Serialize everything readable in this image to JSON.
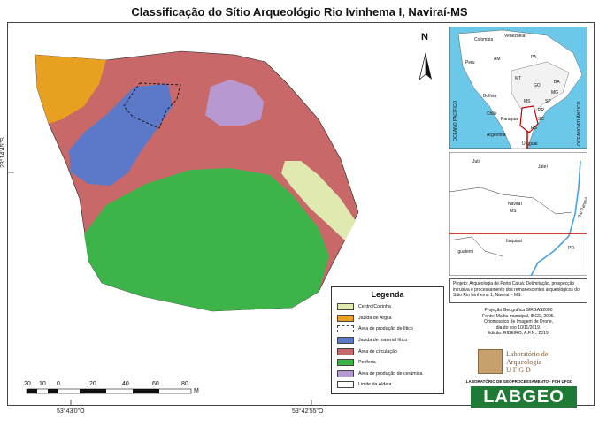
{
  "title": "Classificação do Sítio Arqueológio Rio Ivinhema I, Naviraí-MS",
  "coordinates": {
    "lat_label": "23°14'45\"S",
    "lon_label_1": "53°43'0\"O",
    "lon_label_2": "53°42'55\"O"
  },
  "north_arrow": {
    "label": "N"
  },
  "scale_bar": {
    "ticks": [
      "20",
      "10",
      "0",
      "20",
      "40",
      "60",
      "80"
    ],
    "unit": "M"
  },
  "legend": {
    "title": "Legenda",
    "items": [
      {
        "label": "Centro/Cozinha",
        "color": "#e0eab0",
        "style": "fill"
      },
      {
        "label": "Jazida de Argila",
        "color": "#e8a020",
        "style": "fill"
      },
      {
        "label": "Área de produção de lítico",
        "color": "#ffffff",
        "style": "dashed"
      },
      {
        "label": "Jazida de material lítico",
        "color": "#5c78c8",
        "style": "fill"
      },
      {
        "label": "Área de circulação",
        "color": "#c86868",
        "style": "fill"
      },
      {
        "label": "Periferia",
        "color": "#3cb44a",
        "style": "fill"
      },
      {
        "label": "Área de produção de cerâmica",
        "color": "#b898d0",
        "style": "fill"
      },
      {
        "label": "Limite da Aldeia",
        "color": "#ffffff",
        "style": "outline"
      }
    ]
  },
  "inset_maps": {
    "south_america": {
      "labels": [
        "Colombia",
        "Venezuela",
        "Peru",
        "Bolívia",
        "Chile",
        "Argentina",
        "Paraguai",
        "Uruguai",
        "AM",
        "PA",
        "MT",
        "GO",
        "MS",
        "BA",
        "PR",
        "SP",
        "MG",
        "RS",
        "SC"
      ],
      "ocean_left": "OCEANO PACÍFICO",
      "ocean_right": "OCEANO ATLÂNTICO"
    },
    "regional": {
      "labels": [
        "Juti",
        "Jateí",
        "Naviraí",
        "MS",
        "Itaquiraí",
        "Iguatemi",
        "Rio Paraná",
        "PR"
      ]
    }
  },
  "project_info": "Projeto: Arqueologia de Porto Caiuá: Delimitação, prospecção intrusiva e processamento dos remanescentes arqueológicos do Sítio Rio Ivinhema 1, Naviraí – MS.",
  "projection_info": [
    "Projeção Geográfica SIRGAS2000",
    "Fonte: Malha municipal, IBGE, 2005.",
    "Ortomosaico de Imagem de Drone,",
    "dia do voo 10/11/2019.",
    "Edição: RIBEIRO, A.F.N., 2019."
  ],
  "logos": {
    "lab_arqueologia": [
      "Laboratório de",
      "Arqueologia",
      "U F G D"
    ],
    "labgeo_caption": "LABORATÓRIO DE GEOPROCESSAMENTO - FCH UFGD",
    "labgeo": "LABGEO"
  }
}
